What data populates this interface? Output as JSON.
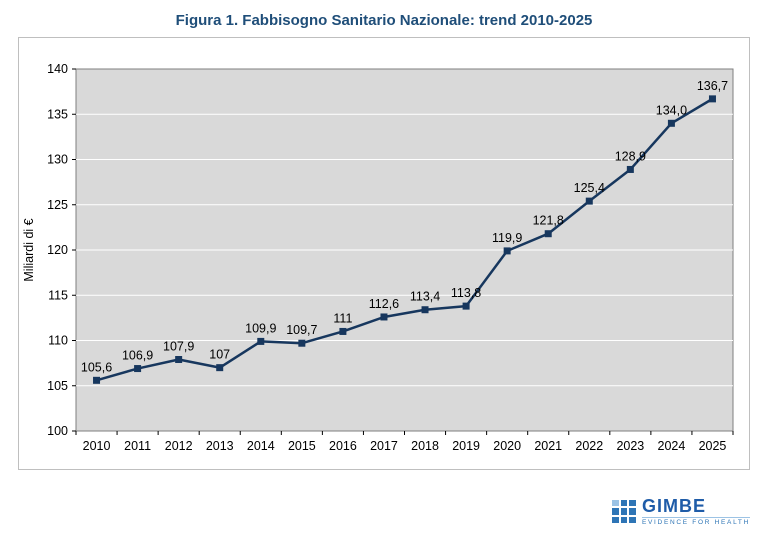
{
  "chart_data": {
    "type": "line",
    "title": "Figura 1. Fabbisogno Sanitario Nazionale: trend 2010-2025",
    "categories": [
      "2010",
      "2011",
      "2012",
      "2013",
      "2014",
      "2015",
      "2016",
      "2017",
      "2018",
      "2019",
      "2020",
      "2021",
      "2022",
      "2023",
      "2024",
      "2025"
    ],
    "values": [
      105.6,
      106.9,
      107.9,
      107,
      109.9,
      109.7,
      111,
      112.6,
      113.4,
      113.8,
      119.9,
      121.8,
      125.4,
      128.9,
      134.0,
      136.7
    ],
    "value_labels": [
      "105,6",
      "106,9",
      "107,9",
      "107",
      "109,9",
      "109,7",
      "111",
      "112,6",
      "113,4",
      "113,8",
      "119,9",
      "121,8",
      "125,4",
      "128,9",
      "134,0",
      "136,7"
    ],
    "xlabel": "",
    "ylabel": "Miliardi di €",
    "ylim": [
      100,
      140
    ],
    "ytick_step": 5,
    "grid": true,
    "legend": "none",
    "marker": "square",
    "series_color": "#17375E",
    "plot_background": "#D9D9D9",
    "plot_border": "#7F7F7F",
    "gridline_color": "#FFFFFF"
  },
  "footer": {
    "logo_text": "GIMBE",
    "logo_subtext": "EVIDENCE FOR HEALTH"
  },
  "colors": {
    "title_blue": "#1F4E79",
    "logo_blue": "#2E75B6"
  }
}
